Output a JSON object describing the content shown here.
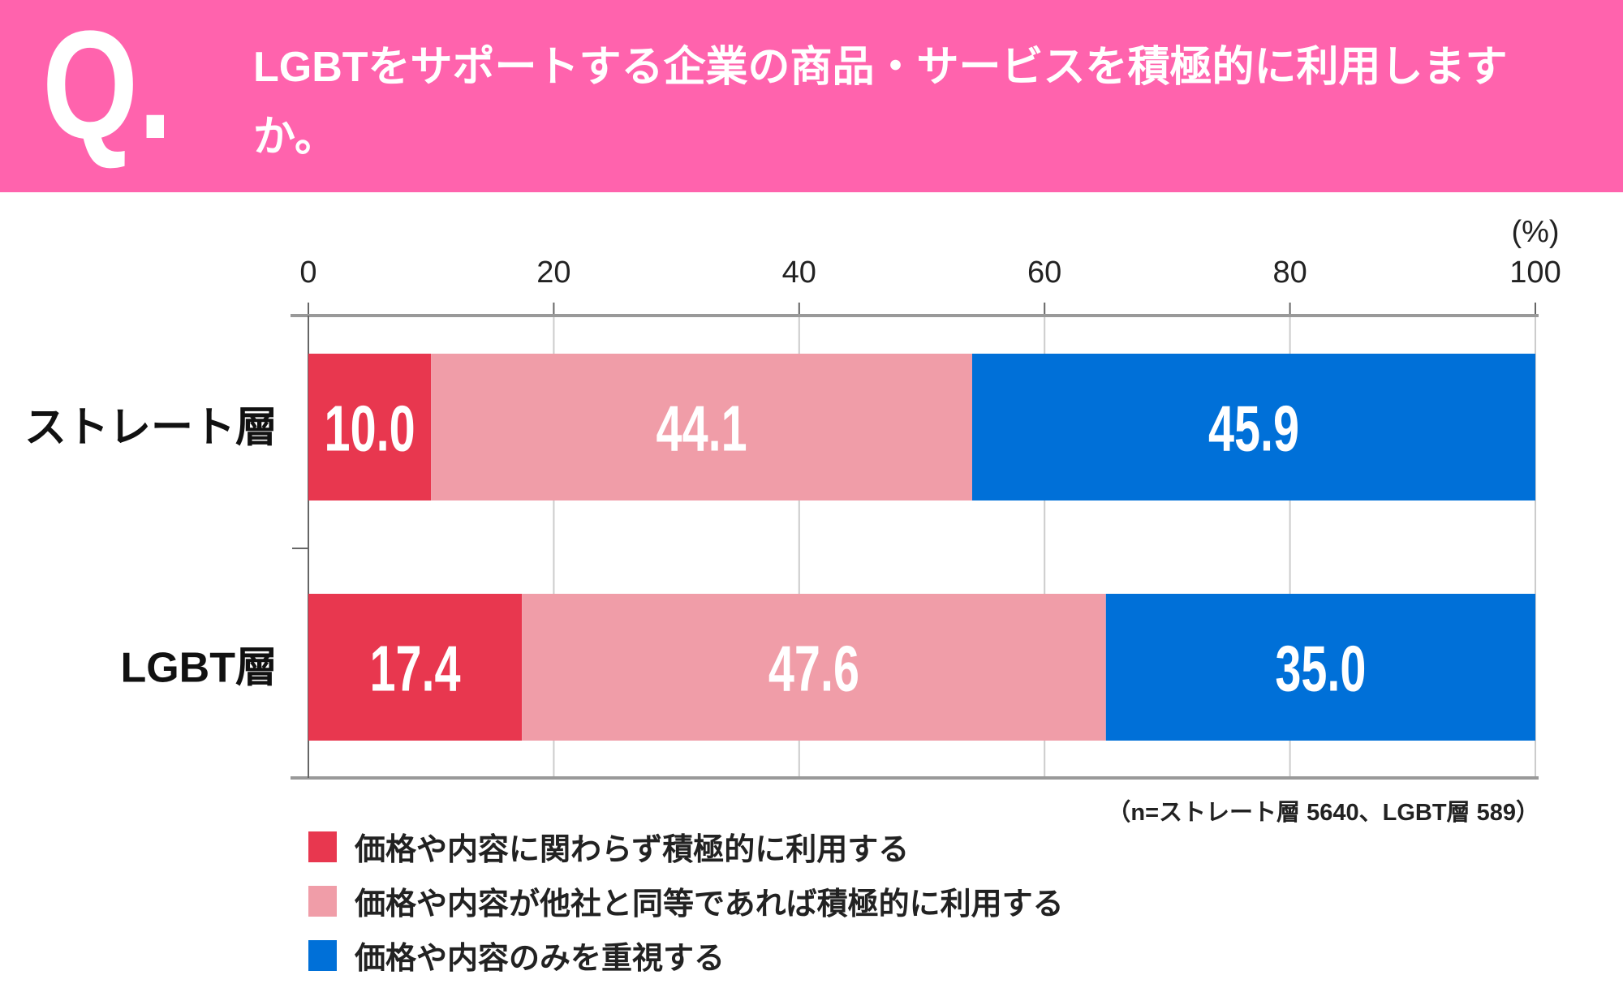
{
  "header": {
    "q_mark": "Q.",
    "question": "LGBTをサポートする企業の商品・サービスを積極的に利用しますか。",
    "background_color": "#FF63AD"
  },
  "chart_data": {
    "type": "bar",
    "orientation": "horizontal",
    "stacked": true,
    "unit_label": "(%)",
    "xlim": [
      0,
      100
    ],
    "xticks": [
      "0",
      "20",
      "40",
      "60",
      "80",
      "100"
    ],
    "grid": true,
    "categories": [
      "ストレート層",
      "LGBT層"
    ],
    "series": [
      {
        "name": "価格や内容に関わらず積極的に利用する",
        "color": "#E8374F",
        "values": [
          10.0,
          17.4
        ],
        "labels": [
          "10.0",
          "17.4"
        ]
      },
      {
        "name": "価格や内容が他社と同等であれば積極的に利用する",
        "color": "#F09DA8",
        "values": [
          44.1,
          47.6
        ],
        "labels": [
          "44.1",
          "47.6"
        ]
      },
      {
        "name": "価格や内容のみを重視する",
        "color": "#0070D8",
        "values": [
          45.9,
          35.0
        ],
        "labels": [
          "45.9",
          "35.0"
        ]
      }
    ],
    "legend_position": "bottom-left",
    "note": "（n=ストレート層 5640、LGBT層 589）"
  }
}
